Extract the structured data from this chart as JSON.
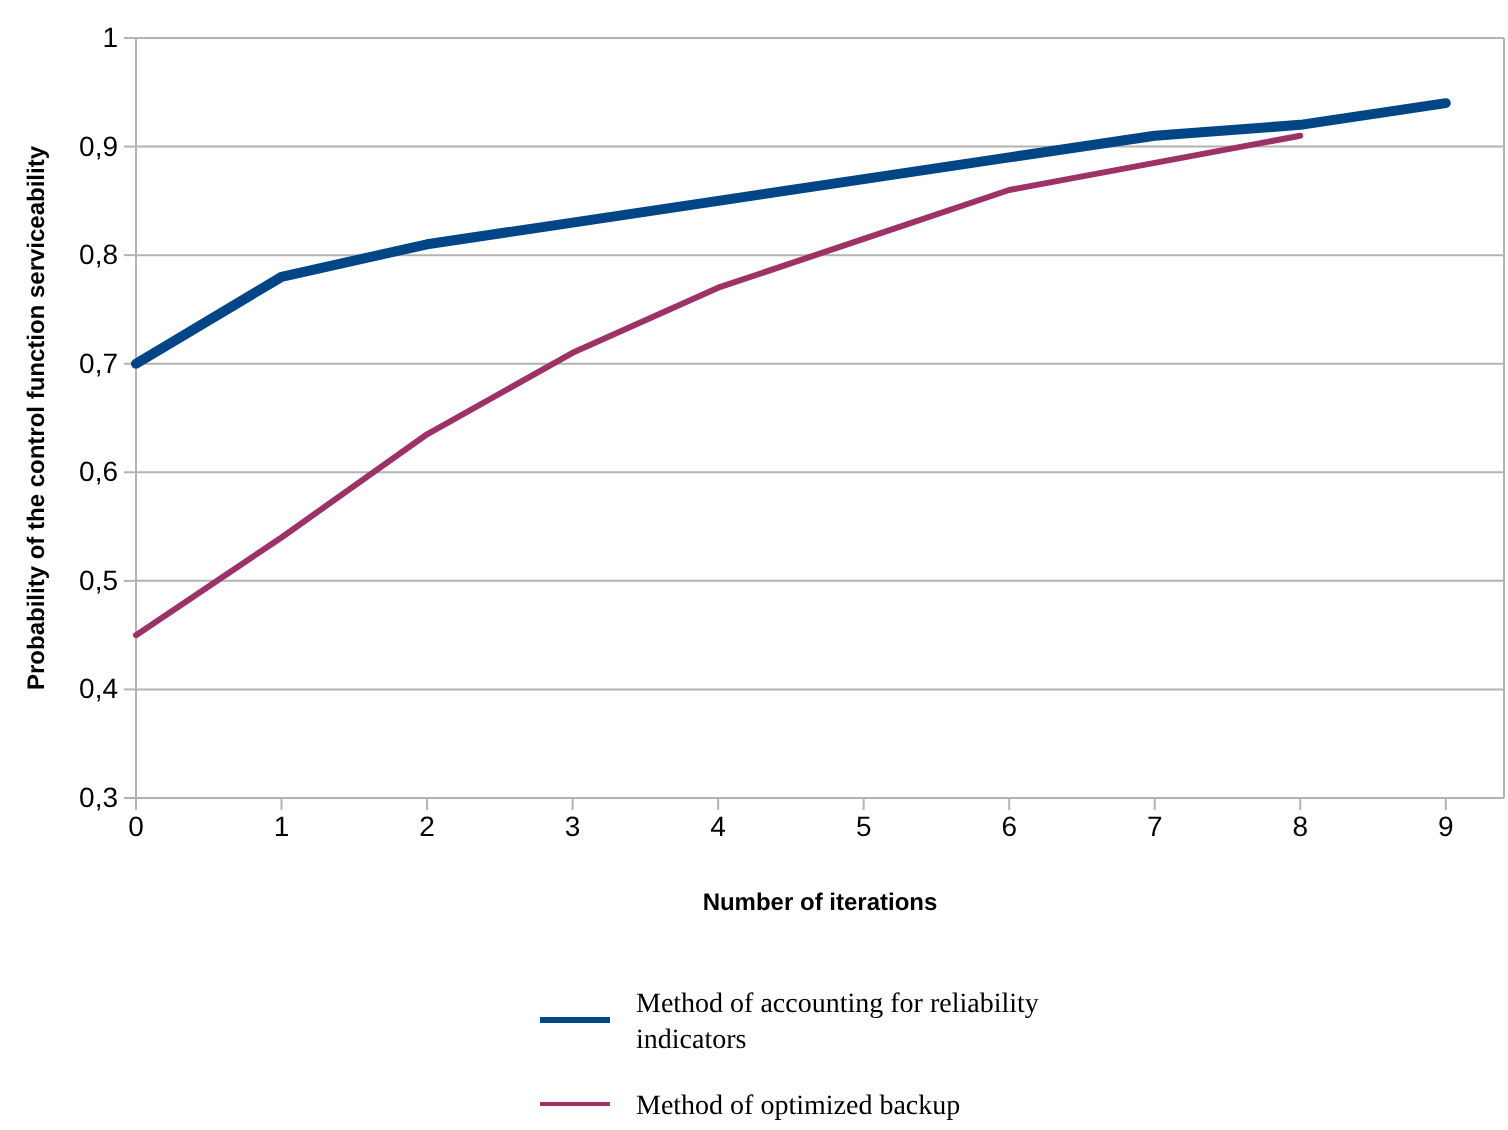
{
  "chart_data": {
    "type": "line",
    "xlabel": "Number of iterations",
    "ylabel": "Probability of the control function serviceability",
    "xlim": [
      0,
      9.4
    ],
    "xticks": [
      0,
      1,
      2,
      3,
      4,
      5,
      6,
      7,
      8,
      9
    ],
    "ylim": [
      0.3,
      1
    ],
    "yticks": [
      {
        "value": 0.3,
        "label": "0,3"
      },
      {
        "value": 0.4,
        "label": "0,4"
      },
      {
        "value": 0.5,
        "label": "0,5"
      },
      {
        "value": 0.6,
        "label": "0,6"
      },
      {
        "value": 0.7,
        "label": "0,7"
      },
      {
        "value": 0.8,
        "label": "0,8"
      },
      {
        "value": 0.9,
        "label": "0,9"
      },
      1
    ],
    "grid": "y",
    "legend": "bottom",
    "marker": "none",
    "line_style": "solid",
    "series": [
      {
        "name": "Method of accounting for reliability indicators",
        "color": "#004586",
        "x": [
          0,
          1,
          2,
          3,
          4,
          5,
          6,
          7,
          8,
          9
        ],
        "values": [
          0.7,
          0.78,
          0.81,
          0.83,
          0.85,
          0.87,
          0.89,
          0.91,
          0.92,
          0.94
        ]
      },
      {
        "name": "Method of optimized backup",
        "color": "#9c3265",
        "x": [
          0,
          1,
          2,
          3,
          4,
          5,
          6,
          7,
          8
        ],
        "values": [
          0.45,
          0.54,
          0.635,
          0.71,
          0.77,
          0.815,
          0.86,
          0.885,
          0.91
        ]
      }
    ]
  }
}
